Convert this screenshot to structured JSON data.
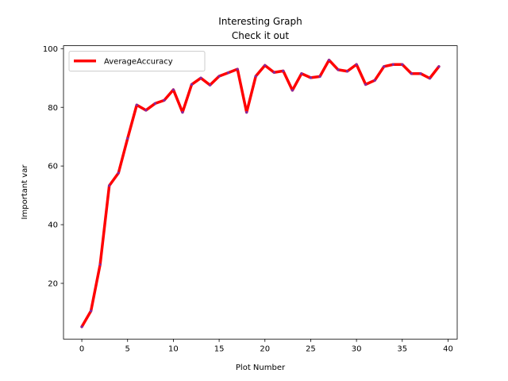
{
  "chart_data": {
    "type": "line",
    "title": "Interesting Graph",
    "subtitle": "Check it out",
    "xlabel": "Plot Number",
    "ylabel": "Important var",
    "xlim": [
      -2,
      41
    ],
    "ylim": [
      1,
      101
    ],
    "xticks": [
      0,
      5,
      10,
      15,
      20,
      25,
      30,
      35,
      40
    ],
    "yticks": [
      20,
      40,
      60,
      80,
      100
    ],
    "grid": false,
    "legend_position": "upper-left",
    "series": [
      {
        "name": "AverageAccuracy",
        "color": "#ff0000",
        "marker_color": "#7f2aa8",
        "x": [
          0,
          1,
          2,
          3,
          4,
          5,
          6,
          7,
          8,
          9,
          10,
          11,
          12,
          13,
          14,
          15,
          16,
          17,
          18,
          19,
          20,
          21,
          22,
          23,
          24,
          25,
          26,
          27,
          28,
          29,
          30,
          31,
          32,
          33,
          34,
          35,
          36,
          37,
          38,
          39
        ],
        "y": [
          5.2,
          10.6,
          26.4,
          53.3,
          57.6,
          69.4,
          80.8,
          79.0,
          81.3,
          82.4,
          86.0,
          78.3,
          87.8,
          90.0,
          87.6,
          90.6,
          91.8,
          93.0,
          78.3,
          90.6,
          94.3,
          91.9,
          92.4,
          85.8,
          91.5,
          90.1,
          90.5,
          96.1,
          92.8,
          92.3,
          94.6,
          87.8,
          89.2,
          93.9,
          94.6,
          94.6,
          91.5,
          91.5,
          89.9,
          93.9
        ]
      }
    ]
  }
}
